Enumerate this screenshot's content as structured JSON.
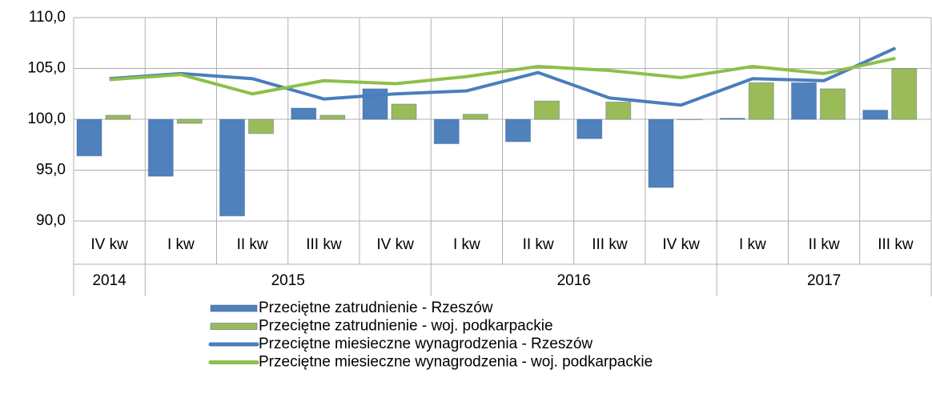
{
  "chart_data": {
    "type": "bar-line",
    "categories": [
      "IV kw",
      "I kw",
      "II kw",
      "III kw",
      "IV kw",
      "I kw",
      "II kw",
      "III kw",
      "IV kw",
      "I kw",
      "II kw",
      "III kw"
    ],
    "year_groups": [
      {
        "label": "2014",
        "span": 1
      },
      {
        "label": "2015",
        "span": 4
      },
      {
        "label": "2016",
        "span": 4
      },
      {
        "label": "2017",
        "span": 3
      }
    ],
    "bar_baseline": 100,
    "series": [
      {
        "name": "Przeciętne zatrudnienie - Rzeszów",
        "kind": "bar",
        "color": "#4f81bd",
        "values": [
          96.4,
          94.4,
          90.5,
          101.1,
          103.0,
          97.6,
          97.8,
          98.1,
          93.3,
          100.1,
          103.6,
          100.9
        ]
      },
      {
        "name": "Przeciętne zatrudnienie - woj. podkarpackie",
        "kind": "bar",
        "color": "#9bbb59",
        "values": [
          100.4,
          99.6,
          98.6,
          100.4,
          101.5,
          100.5,
          101.8,
          101.7,
          100.0,
          103.6,
          103.0,
          105.0
        ]
      },
      {
        "name": "Przeciętne miesieczne wynagrodzenia - Rzeszów",
        "kind": "line",
        "color": "#4a7ebb",
        "values": [
          104.0,
          104.5,
          104.0,
          102.0,
          102.5,
          102.8,
          104.6,
          102.1,
          101.4,
          104.0,
          103.8,
          107.0
        ]
      },
      {
        "name": "Przeciętne miesieczne wynagrodzenia - woj. podkarpackie",
        "kind": "line",
        "color": "#8dbf4a",
        "values": [
          103.9,
          104.4,
          102.5,
          103.8,
          103.5,
          104.2,
          105.2,
          104.8,
          104.1,
          105.2,
          104.5,
          106.0
        ]
      }
    ],
    "ylim": [
      90,
      110
    ],
    "yticks": [
      {
        "value": 90,
        "label": "90,0"
      },
      {
        "value": 95,
        "label": "95,0"
      },
      {
        "value": 100,
        "label": "100,0"
      },
      {
        "value": 105,
        "label": "105,0"
      },
      {
        "value": 110,
        "label": "110,0"
      }
    ],
    "grid": true
  }
}
